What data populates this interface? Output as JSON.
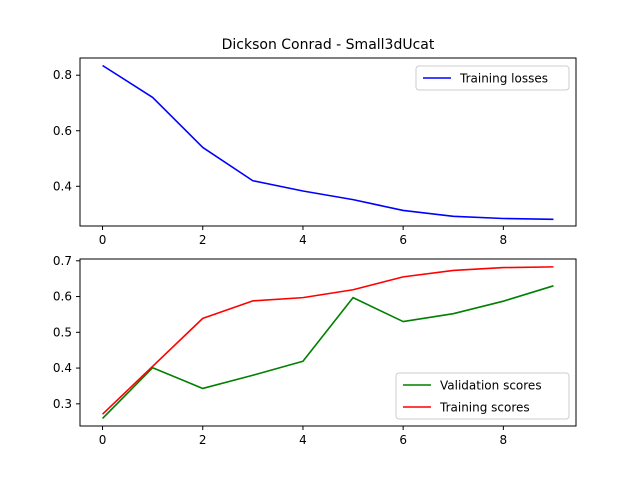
{
  "chart_data": [
    {
      "type": "line",
      "title": "Dickson Conrad - Small3dUcat",
      "xlabel": "",
      "ylabel": "",
      "x": [
        0,
        1,
        2,
        3,
        4,
        5,
        6,
        7,
        8,
        9
      ],
      "xlim": [
        -0.45,
        9.45
      ],
      "ylim": [
        0.257,
        0.862
      ],
      "xticks": [
        0,
        2,
        4,
        6,
        8
      ],
      "yticks": [
        0.4,
        0.6,
        0.8
      ],
      "ytick_labels": [
        "0.4",
        "0.6",
        "0.8"
      ],
      "grid": false,
      "legend_position": "top-right",
      "series": [
        {
          "name": "Training losses",
          "color": "#0000ff",
          "values": [
            0.835,
            0.72,
            0.54,
            0.42,
            0.383,
            0.352,
            0.313,
            0.292,
            0.284,
            0.281
          ]
        }
      ]
    },
    {
      "type": "line",
      "title": "",
      "xlabel": "",
      "ylabel": "",
      "x": [
        0,
        1,
        2,
        3,
        4,
        5,
        6,
        7,
        8,
        9
      ],
      "xlim": [
        -0.45,
        9.45
      ],
      "ylim": [
        0.238,
        0.705
      ],
      "xticks": [
        0,
        2,
        4,
        6,
        8
      ],
      "yticks": [
        0.3,
        0.4,
        0.5,
        0.6,
        0.7
      ],
      "ytick_labels": [
        "0.3",
        "0.4",
        "0.5",
        "0.6",
        "0.7"
      ],
      "grid": false,
      "legend_position": "bottom-right",
      "series": [
        {
          "name": "Validation scores",
          "color": "#008000",
          "values": [
            0.259,
            0.401,
            0.343,
            0.38,
            0.419,
            0.597,
            0.53,
            0.552,
            0.587,
            0.63
          ]
        },
        {
          "name": "Training scores",
          "color": "#ff0000",
          "values": [
            0.271,
            0.405,
            0.539,
            0.588,
            0.597,
            0.619,
            0.655,
            0.673,
            0.681,
            0.683
          ]
        }
      ]
    }
  ]
}
